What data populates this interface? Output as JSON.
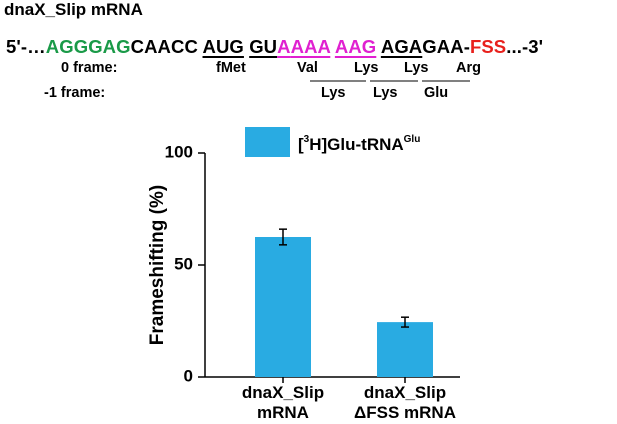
{
  "header": {
    "title": "dnaX_Slip mRNA",
    "sequence": [
      {
        "text": "5'-…",
        "color": "#000000",
        "underline": false
      },
      {
        "text": "AGGGAG",
        "color": "#1a9a48",
        "underline": false
      },
      {
        "text": "CAACC",
        "color": "#000000",
        "underline": false
      },
      {
        "text": "AUG",
        "color": "#000000",
        "underline": true
      },
      {
        "text": "GU",
        "color": "#000000",
        "underline": true
      },
      {
        "text": "A",
        "color": "#e020d0",
        "underline": true
      },
      {
        "text": "AAA",
        "color": "#e020d0",
        "underline": true
      },
      {
        "text": "AAG",
        "color": "#e020d0",
        "underline": true
      },
      {
        "text": "AGA",
        "color": "#000000",
        "underline": true
      },
      {
        "text": "GAA-",
        "color": "#000000",
        "underline": false
      },
      {
        "text": "FSS",
        "color": "#e8201c",
        "underline": false
      },
      {
        "text": "...-3'",
        "color": "#000000",
        "underline": false
      }
    ],
    "frames": [
      {
        "label": "0 frame:",
        "codons": [
          "fMet",
          "Val",
          "Lys",
          "Lys",
          "Arg"
        ]
      },
      {
        "label": "-1 frame:",
        "codons": [
          "Lys",
          "Lys",
          "Glu"
        ]
      }
    ]
  },
  "chart_data": {
    "type": "bar",
    "y_label": "Frameshifting (%)",
    "categories": [
      [
        "dnaX_Slip",
        "mRNA"
      ],
      [
        "dnaX_Slip",
        "ΔFSS mRNA"
      ]
    ],
    "series": [
      {
        "name": [
          "[",
          "3",
          "H]Glu-tRNA",
          "Glu"
        ],
        "color": "#29abe2",
        "values": [
          62.5,
          24.5
        ],
        "errors": [
          3.5,
          2.2
        ]
      }
    ],
    "ylim": [
      0,
      100
    ],
    "yticks": [
      0,
      50,
      100
    ],
    "legend": "top"
  }
}
